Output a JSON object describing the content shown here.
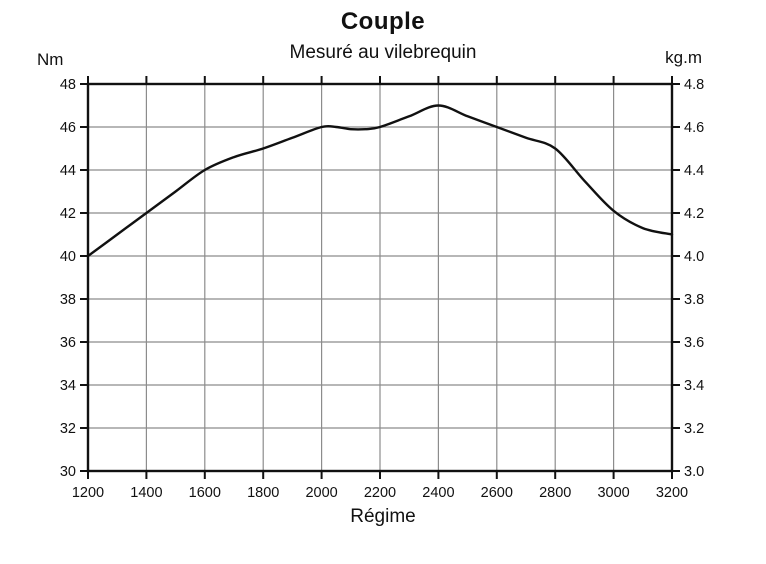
{
  "chart_data": {
    "type": "line",
    "title": "Couple",
    "subtitle": "Mesuré au vilebrequin",
    "xlabel": "Régime",
    "left_axis_unit": "Nm",
    "right_axis_unit": "kg.m",
    "x_tick_labels": [
      "1200",
      "1400",
      "1600",
      "1800",
      "2000",
      "2200",
      "2400",
      "2600",
      "2800",
      "3000",
      "3200"
    ],
    "y_left_tick_labels": [
      "48",
      "46",
      "44",
      "42",
      "40",
      "38",
      "36",
      "34",
      "32",
      "30"
    ],
    "y_right_tick_labels": [
      "4.8",
      "4.6",
      "4.4",
      "4.2",
      "4.0",
      "3.8",
      "3.6",
      "3.4",
      "3.2",
      "3.0"
    ],
    "xlim": [
      1200,
      3200
    ],
    "ylim_left": [
      30,
      48
    ],
    "ylim_right": [
      3.0,
      4.8
    ],
    "grid": true,
    "legend": "none",
    "series": [
      {
        "name": "Couple mesuré au vilebrequin (Nm)",
        "x": [
          1200,
          1300,
          1400,
          1500,
          1600,
          1700,
          1800,
          1900,
          2000,
          2050,
          2100,
          2150,
          2200,
          2300,
          2400,
          2500,
          2600,
          2700,
          2800,
          2900,
          3000,
          3100,
          3200
        ],
        "y_nm": [
          40.0,
          41.0,
          42.0,
          43.0,
          44.0,
          44.6,
          45.0,
          45.5,
          46.0,
          46.0,
          45.9,
          45.9,
          46.0,
          46.5,
          47.0,
          46.5,
          46.0,
          45.5,
          45.0,
          43.5,
          42.1,
          41.3,
          41.0
        ]
      }
    ],
    "colors": {
      "curve": "#111111",
      "axis": "#111111",
      "grid": "#8c8c8c",
      "background": "#ffffff",
      "text": "#111111"
    }
  }
}
